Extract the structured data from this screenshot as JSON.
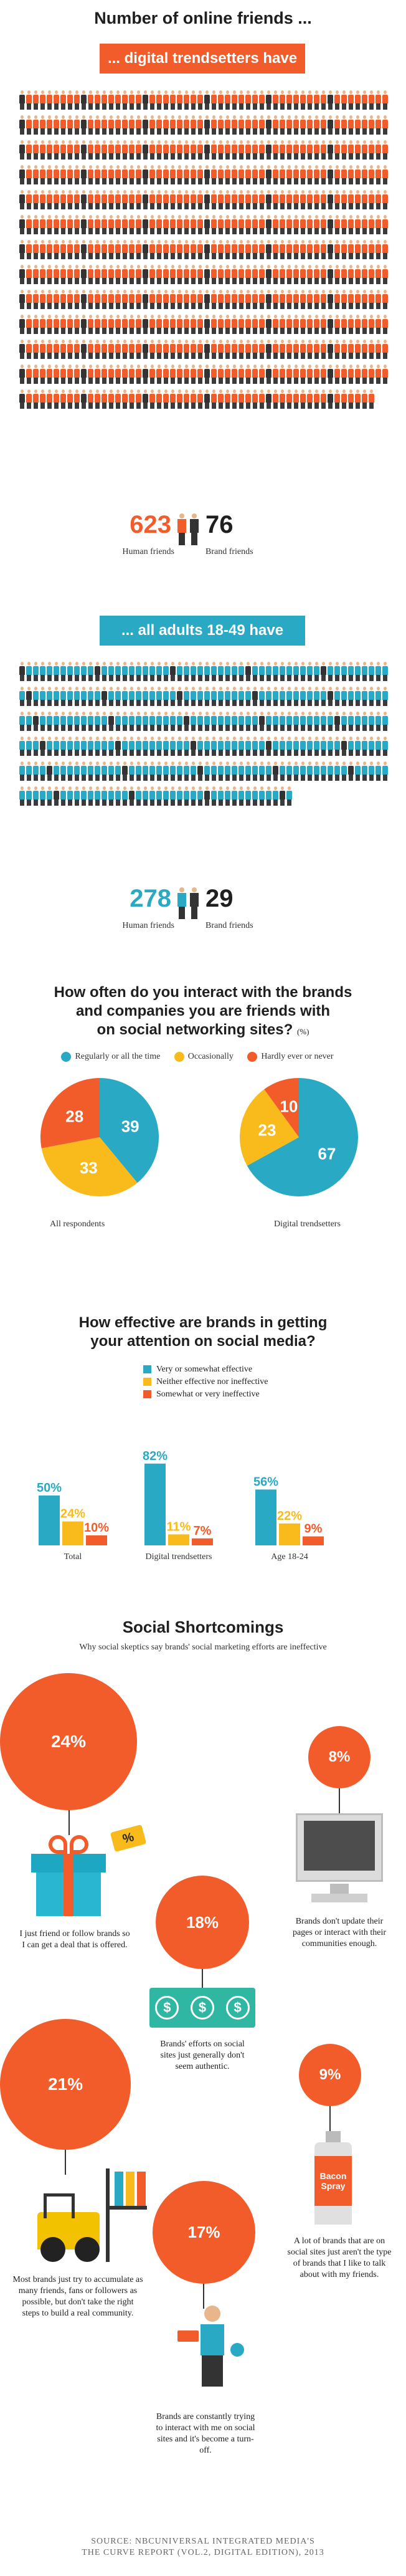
{
  "section1": {
    "title": "Number of online friends ...",
    "banner_trendsetters": "... digital trendsetters have",
    "trendsetters_human": "623",
    "trendsetters_brand": "76",
    "human_label": "Human friends",
    "brand_label": "Brand friends",
    "banner_adults": "... all adults 18-49 have",
    "adults_human": "278",
    "adults_brand": "29"
  },
  "section2": {
    "title_line1": "How often do you interact with the brands",
    "title_line2": "and companies you are friends with",
    "title_line3": "on social networking sites?",
    "title_unit": "(%)",
    "legend": [
      "Regularly or all the time",
      "Occasionally",
      "Hardly ever or never"
    ],
    "colors": [
      "#29a9c4",
      "#f9bb1b",
      "#f25c2b"
    ]
  },
  "section3": {
    "title_line1": "How effective are brands in getting",
    "title_line2": "your attention on social media?",
    "legend": [
      "Very  or somewhat effective",
      "Neither effective nor ineffective",
      "Somewhat  or very ineffective"
    ]
  },
  "chart_data": [
    {
      "type": "pie",
      "title": "All respondents",
      "labels": [
        "Regularly or all the time",
        "Occasionally",
        "Hardly ever or never"
      ],
      "values": [
        39,
        33,
        28
      ]
    },
    {
      "type": "pie",
      "title": "Digital trendsetters",
      "labels": [
        "Regularly or all the time",
        "Occasionally",
        "Hardly ever or never"
      ],
      "values": [
        67,
        23,
        10
      ]
    },
    {
      "type": "bar",
      "categories": [
        "Total",
        "Digital trendsetters",
        "Age 18-24"
      ],
      "series": [
        {
          "name": "Very  or somewhat effective",
          "values": [
            50,
            82,
            56
          ]
        },
        {
          "name": "Neither effective nor ineffective",
          "values": [
            24,
            11,
            22
          ]
        },
        {
          "name": "Somewhat  or very ineffective",
          "values": [
            10,
            7,
            9
          ]
        }
      ],
      "value_labels": [
        [
          "50%",
          "24%",
          "10%"
        ],
        [
          "82%",
          "11%",
          "7%"
        ],
        [
          "56%",
          "22%",
          "9%"
        ]
      ],
      "ylim": [
        0,
        100
      ]
    }
  ],
  "section4": {
    "title": "Social Shortcomings",
    "subtitle": "Why social skeptics say brands' social marketing efforts are ineffective",
    "items": [
      {
        "pct": "24%",
        "text": "I just friend or follow brands so I can get a deal that is offered."
      },
      {
        "pct": "8%",
        "text": "Brands don't update their pages or interact with their communities enough."
      },
      {
        "pct": "18%",
        "text": "Brands' efforts on social sites just generally don't seem authentic."
      },
      {
        "pct": "21%",
        "text": "Most brands just try to accumulate as many friends, fans or followers as possible, but don't take the right steps to build a real community."
      },
      {
        "pct": "9%",
        "text": "A lot of brands that are on social sites just aren't the type of brands that I like to talk about with my friends."
      },
      {
        "pct": "17%",
        "text": "Brands are constantly trying to interact with me on social sites and it's become a turn-off."
      }
    ],
    "tag_label": "%",
    "money_label": "$",
    "spray_label": "Bacon Spray"
  },
  "source": {
    "line1": "SOURCE: NBCUNIVERSAL INTEGRATED MEDIA'S",
    "line2": "THE CURVE REPORT (VOL.2, DIGITAL EDITION), 2013"
  }
}
